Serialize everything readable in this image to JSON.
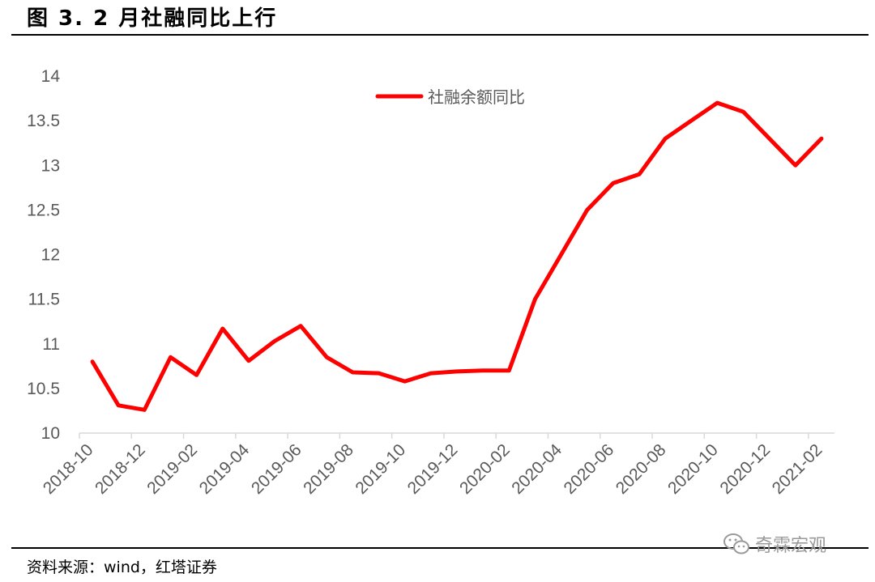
{
  "figure": {
    "title": "图 3. 2 月社融同比上行",
    "source": "资料来源：wind，红塔证券",
    "watermark": "奇霖宏观"
  },
  "chart_data": {
    "type": "line",
    "title": "",
    "xlabel": "",
    "ylabel": "",
    "ylim": [
      10,
      14
    ],
    "yticks": [
      10,
      10.5,
      11,
      11.5,
      12,
      12.5,
      13,
      13.5,
      14
    ],
    "xtick_labels": [
      "2018-10",
      "2018-12",
      "2019-02",
      "2019-04",
      "2019-06",
      "2019-08",
      "2019-10",
      "2019-12",
      "2020-02",
      "2020-04",
      "2020-06",
      "2020-08",
      "2020-10",
      "2020-12",
      "2021-02"
    ],
    "grid": false,
    "legend_position": "top-center",
    "x": [
      "2018-10",
      "2018-11",
      "2018-12",
      "2019-01",
      "2019-02",
      "2019-03",
      "2019-04",
      "2019-05",
      "2019-06",
      "2019-07",
      "2019-08",
      "2019-09",
      "2019-10",
      "2019-11",
      "2019-12",
      "2020-01",
      "2020-02",
      "2020-03",
      "2020-04",
      "2020-05",
      "2020-06",
      "2020-07",
      "2020-08",
      "2020-09",
      "2020-10",
      "2020-11",
      "2020-12",
      "2021-01",
      "2021-02"
    ],
    "series": [
      {
        "name": "社融余额同比",
        "color": "#ff0000",
        "values": [
          10.8,
          10.31,
          10.26,
          10.85,
          10.65,
          11.17,
          10.81,
          11.03,
          11.2,
          10.85,
          10.68,
          10.67,
          10.58,
          10.67,
          10.69,
          10.7,
          10.7,
          11.5,
          12.0,
          12.5,
          12.8,
          12.9,
          13.3,
          13.5,
          13.7,
          13.6,
          13.3,
          13.0,
          13.3
        ]
      }
    ]
  }
}
